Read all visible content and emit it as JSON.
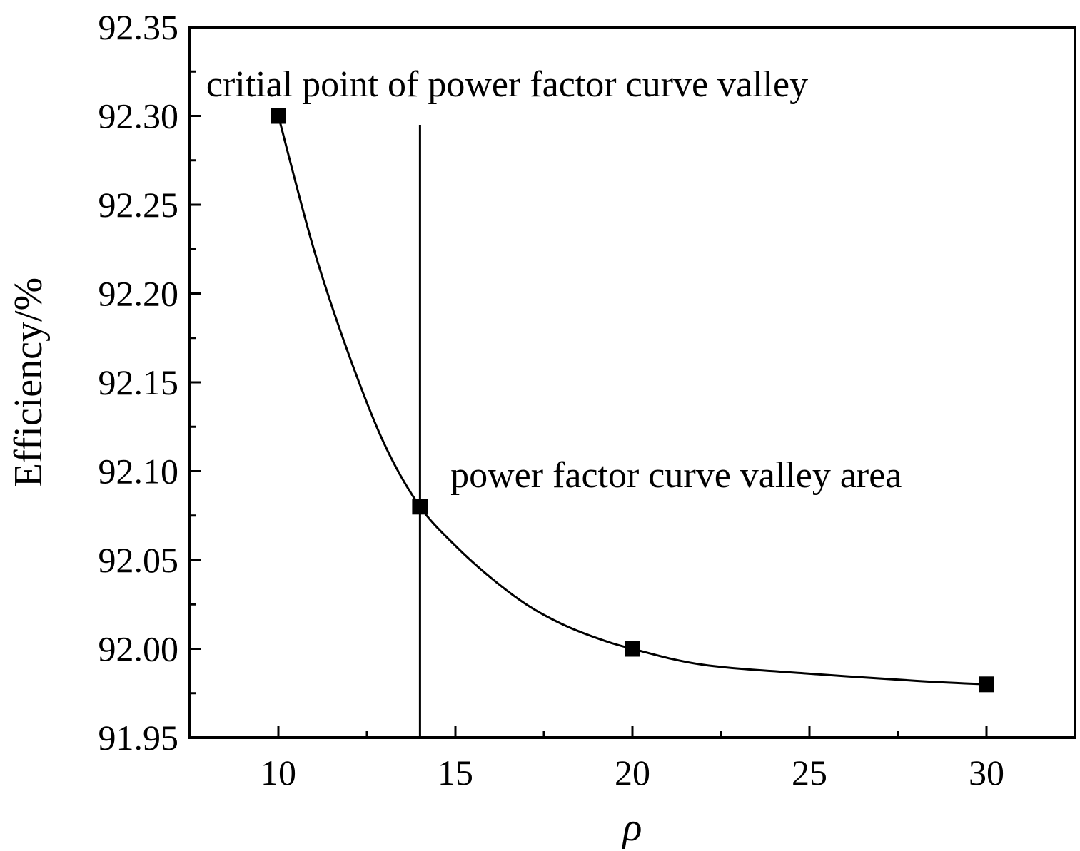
{
  "chart_data": {
    "type": "line",
    "xlabel": "ρ",
    "ylabel": "Efficiency/%",
    "xlim": [
      7.5,
      32.5
    ],
    "ylim": [
      91.95,
      92.35
    ],
    "x_ticks": [
      10,
      15,
      20,
      25,
      30
    ],
    "y_ticks": [
      "91.95",
      "92.00",
      "92.05",
      "92.10",
      "92.15",
      "92.20",
      "92.25",
      "92.30",
      "92.35"
    ],
    "grid": false,
    "legend": "none",
    "series": [
      {
        "points": [
          {
            "x": 10,
            "y": 92.3
          },
          {
            "x": 14,
            "y": 92.08
          },
          {
            "x": 20,
            "y": 92.0
          },
          {
            "x": 30,
            "y": 91.98
          }
        ]
      }
    ],
    "smooth_curve": [
      {
        "x": 10,
        "y": 92.3
      },
      {
        "x": 11,
        "y": 92.225
      },
      {
        "x": 12,
        "y": 92.165
      },
      {
        "x": 13,
        "y": 92.115
      },
      {
        "x": 14,
        "y": 92.08
      },
      {
        "x": 15,
        "y": 92.058
      },
      {
        "x": 16,
        "y": 92.04
      },
      {
        "x": 17,
        "y": 92.025
      },
      {
        "x": 18,
        "y": 92.014
      },
      {
        "x": 19,
        "y": 92.006
      },
      {
        "x": 20,
        "y": 92.0
      },
      {
        "x": 22,
        "y": 91.991
      },
      {
        "x": 25,
        "y": 91.986
      },
      {
        "x": 28,
        "y": 91.982
      },
      {
        "x": 30,
        "y": 91.98
      }
    ],
    "vertical_line": {
      "x": 14,
      "y_top": 92.295
    },
    "annotations": [
      {
        "text": "critial point of power factor curve valley",
        "x": 7.8,
        "y": 92.315
      },
      {
        "text": "power factor curve valley area",
        "x": 14.7,
        "y": 92.095
      }
    ]
  }
}
